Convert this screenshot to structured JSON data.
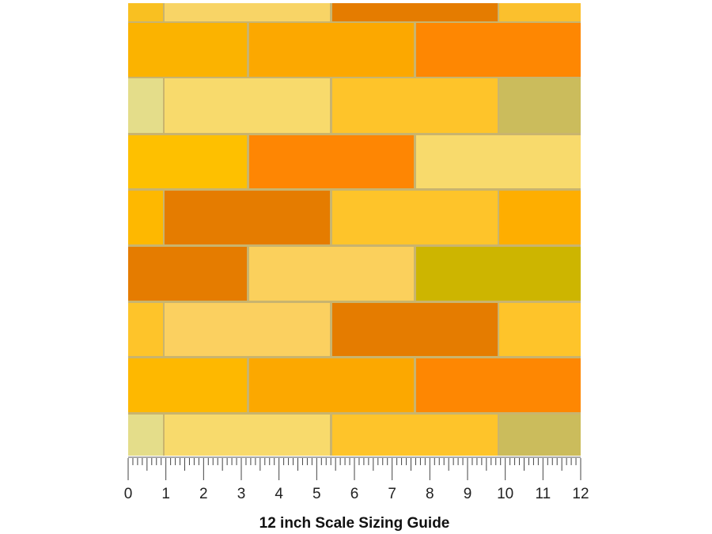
{
  "ruler": {
    "labels": [
      "0",
      "1",
      "2",
      "3",
      "4",
      "5",
      "6",
      "7",
      "8",
      "9",
      "10",
      "11",
      "12"
    ]
  },
  "caption": "12 inch Scale Sizing Guide"
}
